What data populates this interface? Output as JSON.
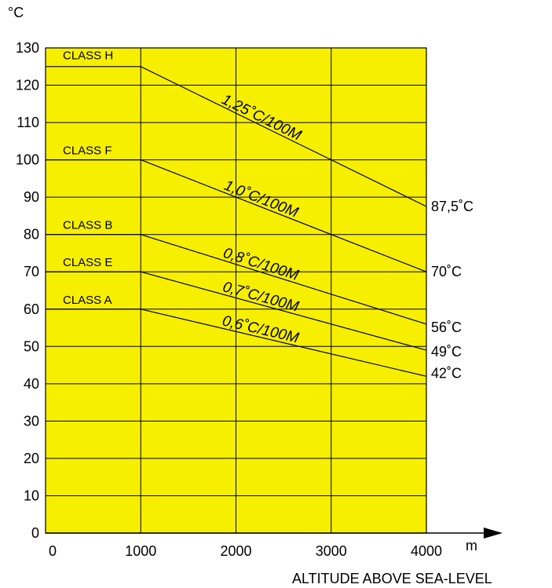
{
  "chart_data": {
    "type": "line",
    "title": "",
    "ylabel": "°C",
    "xlabel": "ALTITUDE ABOVE SEA-LEVEL",
    "x_unit": "m",
    "xlim": [
      0,
      4000
    ],
    "ylim": [
      0,
      130
    ],
    "x_ticks": [
      0,
      1000,
      2000,
      3000,
      4000
    ],
    "y_ticks": [
      0,
      10,
      20,
      30,
      40,
      50,
      60,
      70,
      80,
      90,
      100,
      110,
      120,
      130
    ],
    "grid": true,
    "background_color": "#f7ef00",
    "series": [
      {
        "name": "CLASS H",
        "rate_label": "1,25˚C/100M",
        "end_label": "87,5˚C",
        "points": [
          [
            0,
            125
          ],
          [
            1000,
            125
          ],
          [
            4000,
            87.5
          ]
        ]
      },
      {
        "name": "CLASS F",
        "rate_label": "1,0˚C/100M",
        "end_label": "70˚C",
        "points": [
          [
            1000,
            100
          ],
          [
            4000,
            70
          ]
        ]
      },
      {
        "name": "CLASS B",
        "rate_label": "0,8˚C/100M",
        "end_label": "56˚C",
        "points": [
          [
            1000,
            80
          ],
          [
            4000,
            56
          ]
        ]
      },
      {
        "name": "CLASS E",
        "rate_label": "0,7˚C/100M",
        "end_label": "49˚C",
        "points": [
          [
            1000,
            70
          ],
          [
            4000,
            49
          ]
        ]
      },
      {
        "name": "CLASS A",
        "rate_label": "0,6˚C/100M",
        "end_label": "42˚C",
        "points": [
          [
            1000,
            60
          ],
          [
            4000,
            42
          ]
        ]
      }
    ]
  }
}
